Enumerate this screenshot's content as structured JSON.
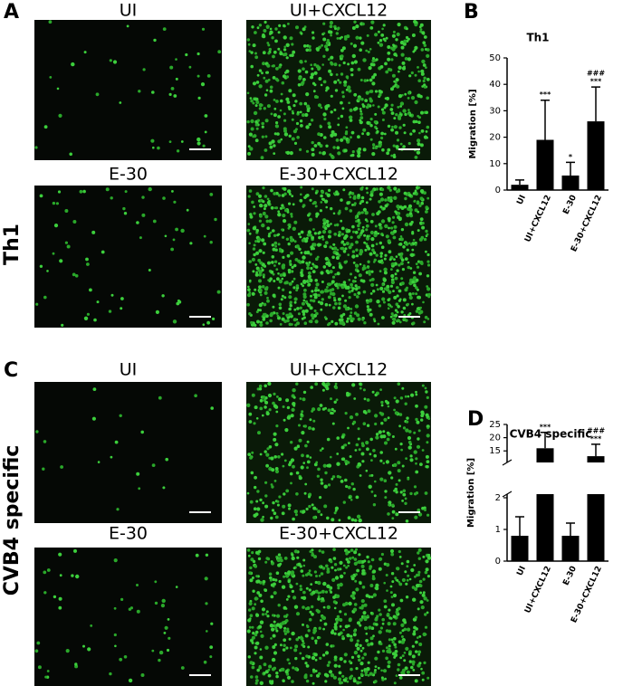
{
  "figure": {
    "panels": [
      {
        "letter": "A",
        "row_label": "Th1",
        "image_titles": [
          "UI",
          "UI+CXCL12",
          "E-30",
          "E-30+CXCL12"
        ]
      },
      {
        "letter": "C",
        "row_label": "CVB4 specific",
        "image_titles": [
          "UI",
          "UI+CXCL12",
          "E-30",
          "E-30+CXCL12"
        ]
      }
    ]
  },
  "chart_data": [
    {
      "type": "bar",
      "panel_label": "B",
      "title": "Th1",
      "y_label": "Migration [%]",
      "categories": [
        "UI",
        "UI+CXCL12",
        "E-30",
        "E-30+CXCL12"
      ],
      "values": [
        2,
        19,
        5.5,
        26
      ],
      "errors": [
        1.8,
        15,
        5,
        13
      ],
      "color": "#000000",
      "significance": [
        null,
        [
          "***"
        ],
        [
          "*"
        ],
        [
          "###",
          "***"
        ]
      ],
      "ylim": [
        0,
        50
      ],
      "yticks": [
        0,
        10,
        20,
        30,
        40,
        50
      ]
    },
    {
      "type": "bar",
      "panel_label": "D",
      "title": "CVB4 specific",
      "y_label": "Migration [%]",
      "categories": [
        "UI",
        "UI+CXCL12",
        "E-30",
        "E-30+CXCL12"
      ],
      "values": [
        0.8,
        16,
        0.8,
        13
      ],
      "errors": [
        0.6,
        6,
        0.4,
        4.5
      ],
      "color": "#000000",
      "significance": [
        null,
        [
          "***"
        ],
        null,
        [
          "###",
          "***"
        ]
      ],
      "ylim": [
        0,
        25
      ],
      "axis_break": [
        2,
        12
      ],
      "yticks": [
        0,
        1,
        2,
        15,
        20,
        25
      ]
    }
  ]
}
